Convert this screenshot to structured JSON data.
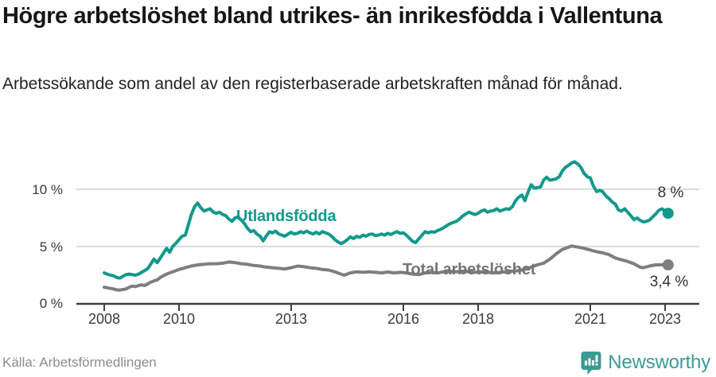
{
  "header": {
    "title": "Högre arbetslöshet bland utrikes- än inrikesfödda i Vallentuna",
    "subtitle": "Arbetssökande som andel av den registerbaserade arbetskraften månad för månad."
  },
  "footer": {
    "source": "Källa: Arbetsförmedlingen",
    "brand": "Newsworthy",
    "brand_icon": "bar-chart-speech-bubble-icon",
    "brand_color": "#3a9b95"
  },
  "chart_data": {
    "type": "line",
    "title": "",
    "xlabel": "",
    "ylabel": "",
    "ylim": [
      0,
      13
    ],
    "xlim": [
      2008,
      2023.1
    ],
    "grid": "horizontal",
    "y_gridlines": [
      5,
      10
    ],
    "y_ticks": [
      "10 %",
      "5 %",
      "0 %"
    ],
    "x_ticks": [
      2008,
      2010,
      2013,
      2016,
      2018,
      2021,
      2023
    ],
    "colors": {
      "axis": "#3f3f3f",
      "gridline": "#dcdcdc",
      "background": "#ffffff"
    },
    "series": [
      {
        "name": "Utlandsfödda",
        "color": "#12998b",
        "end_label": "8 %",
        "end_value": 8,
        "points": [
          [
            2008.0,
            2.7
          ],
          [
            2008.08,
            2.6
          ],
          [
            2008.17,
            2.5
          ],
          [
            2008.25,
            2.45
          ],
          [
            2008.33,
            2.3
          ],
          [
            2008.42,
            2.25
          ],
          [
            2008.5,
            2.4
          ],
          [
            2008.58,
            2.55
          ],
          [
            2008.67,
            2.6
          ],
          [
            2008.75,
            2.55
          ],
          [
            2008.83,
            2.5
          ],
          [
            2008.92,
            2.6
          ],
          [
            2009.0,
            2.75
          ],
          [
            2009.08,
            2.9
          ],
          [
            2009.17,
            3.1
          ],
          [
            2009.25,
            3.5
          ],
          [
            2009.33,
            3.9
          ],
          [
            2009.42,
            3.6
          ],
          [
            2009.5,
            4.0
          ],
          [
            2009.58,
            4.4
          ],
          [
            2009.67,
            4.85
          ],
          [
            2009.75,
            4.5
          ],
          [
            2009.83,
            5.0
          ],
          [
            2009.92,
            5.3
          ],
          [
            2010.0,
            5.6
          ],
          [
            2010.08,
            5.9
          ],
          [
            2010.17,
            6.0
          ],
          [
            2010.25,
            6.9
          ],
          [
            2010.33,
            7.8
          ],
          [
            2010.42,
            8.5
          ],
          [
            2010.5,
            8.8
          ],
          [
            2010.58,
            8.4
          ],
          [
            2010.67,
            8.1
          ],
          [
            2010.75,
            8.2
          ],
          [
            2010.83,
            8.3
          ],
          [
            2010.92,
            8.0
          ],
          [
            2011.0,
            7.9
          ],
          [
            2011.08,
            8.0
          ],
          [
            2011.17,
            7.8
          ],
          [
            2011.25,
            7.7
          ],
          [
            2011.33,
            7.4
          ],
          [
            2011.42,
            7.2
          ],
          [
            2011.5,
            7.5
          ],
          [
            2011.58,
            7.6
          ],
          [
            2011.67,
            7.3
          ],
          [
            2011.75,
            7.0
          ],
          [
            2011.83,
            6.6
          ],
          [
            2011.92,
            6.3
          ],
          [
            2012.0,
            6.4
          ],
          [
            2012.08,
            6.1
          ],
          [
            2012.17,
            5.9
          ],
          [
            2012.25,
            5.5
          ],
          [
            2012.33,
            5.9
          ],
          [
            2012.42,
            6.3
          ],
          [
            2012.5,
            6.2
          ],
          [
            2012.58,
            6.35
          ],
          [
            2012.67,
            6.1
          ],
          [
            2012.75,
            6.0
          ],
          [
            2012.83,
            5.9
          ],
          [
            2012.92,
            6.1
          ],
          [
            2013.0,
            6.25
          ],
          [
            2013.08,
            6.1
          ],
          [
            2013.17,
            6.15
          ],
          [
            2013.25,
            6.3
          ],
          [
            2013.33,
            6.2
          ],
          [
            2013.42,
            6.35
          ],
          [
            2013.5,
            6.2
          ],
          [
            2013.58,
            6.1
          ],
          [
            2013.67,
            6.25
          ],
          [
            2013.75,
            6.1
          ],
          [
            2013.83,
            6.3
          ],
          [
            2013.92,
            6.2
          ],
          [
            2014.0,
            6.1
          ],
          [
            2014.08,
            5.9
          ],
          [
            2014.17,
            5.6
          ],
          [
            2014.25,
            5.4
          ],
          [
            2014.33,
            5.25
          ],
          [
            2014.42,
            5.4
          ],
          [
            2014.5,
            5.6
          ],
          [
            2014.58,
            5.85
          ],
          [
            2014.67,
            5.7
          ],
          [
            2014.75,
            5.9
          ],
          [
            2014.83,
            5.8
          ],
          [
            2014.92,
            6.0
          ],
          [
            2015.0,
            5.9
          ],
          [
            2015.08,
            6.05
          ],
          [
            2015.17,
            6.1
          ],
          [
            2015.25,
            5.95
          ],
          [
            2015.33,
            6.0
          ],
          [
            2015.42,
            6.1
          ],
          [
            2015.5,
            6.0
          ],
          [
            2015.58,
            6.15
          ],
          [
            2015.67,
            6.05
          ],
          [
            2015.75,
            6.2
          ],
          [
            2015.83,
            6.3
          ],
          [
            2015.92,
            6.15
          ],
          [
            2016.0,
            6.2
          ],
          [
            2016.08,
            6.0
          ],
          [
            2016.17,
            5.7
          ],
          [
            2016.25,
            5.45
          ],
          [
            2016.33,
            5.35
          ],
          [
            2016.42,
            5.7
          ],
          [
            2016.5,
            6.0
          ],
          [
            2016.58,
            6.3
          ],
          [
            2016.67,
            6.2
          ],
          [
            2016.75,
            6.3
          ],
          [
            2016.83,
            6.25
          ],
          [
            2016.92,
            6.4
          ],
          [
            2017.0,
            6.5
          ],
          [
            2017.08,
            6.65
          ],
          [
            2017.17,
            6.85
          ],
          [
            2017.25,
            7.0
          ],
          [
            2017.33,
            7.1
          ],
          [
            2017.42,
            7.2
          ],
          [
            2017.5,
            7.4
          ],
          [
            2017.58,
            7.65
          ],
          [
            2017.67,
            7.85
          ],
          [
            2017.75,
            8.0
          ],
          [
            2017.83,
            7.9
          ],
          [
            2017.92,
            7.8
          ],
          [
            2018.0,
            7.9
          ],
          [
            2018.08,
            8.1
          ],
          [
            2018.17,
            8.2
          ],
          [
            2018.25,
            8.0
          ],
          [
            2018.33,
            8.1
          ],
          [
            2018.42,
            8.15
          ],
          [
            2018.5,
            8.3
          ],
          [
            2018.58,
            8.1
          ],
          [
            2018.67,
            8.2
          ],
          [
            2018.75,
            8.3
          ],
          [
            2018.83,
            8.25
          ],
          [
            2018.92,
            8.5
          ],
          [
            2019.0,
            9.0
          ],
          [
            2019.08,
            9.3
          ],
          [
            2019.17,
            9.5
          ],
          [
            2019.25,
            9.0
          ],
          [
            2019.33,
            9.7
          ],
          [
            2019.42,
            10.4
          ],
          [
            2019.5,
            10.1
          ],
          [
            2019.58,
            10.15
          ],
          [
            2019.67,
            10.2
          ],
          [
            2019.75,
            10.8
          ],
          [
            2019.83,
            11.05
          ],
          [
            2019.92,
            10.8
          ],
          [
            2020.0,
            10.85
          ],
          [
            2020.08,
            10.9
          ],
          [
            2020.17,
            11.1
          ],
          [
            2020.25,
            11.6
          ],
          [
            2020.33,
            11.9
          ],
          [
            2020.42,
            12.1
          ],
          [
            2020.5,
            12.3
          ],
          [
            2020.58,
            12.4
          ],
          [
            2020.67,
            12.2
          ],
          [
            2020.75,
            11.9
          ],
          [
            2020.83,
            11.4
          ],
          [
            2020.92,
            11.1
          ],
          [
            2021.0,
            11.0
          ],
          [
            2021.08,
            10.3
          ],
          [
            2021.17,
            9.8
          ],
          [
            2021.25,
            9.9
          ],
          [
            2021.33,
            9.8
          ],
          [
            2021.42,
            9.4
          ],
          [
            2021.5,
            9.2
          ],
          [
            2021.58,
            8.9
          ],
          [
            2021.67,
            8.7
          ],
          [
            2021.75,
            8.2
          ],
          [
            2021.83,
            8.1
          ],
          [
            2021.92,
            8.3
          ],
          [
            2022.0,
            8.0
          ],
          [
            2022.08,
            7.7
          ],
          [
            2022.17,
            7.35
          ],
          [
            2022.25,
            7.5
          ],
          [
            2022.33,
            7.3
          ],
          [
            2022.42,
            7.15
          ],
          [
            2022.5,
            7.2
          ],
          [
            2022.58,
            7.3
          ],
          [
            2022.67,
            7.6
          ],
          [
            2022.75,
            7.85
          ],
          [
            2022.83,
            8.15
          ],
          [
            2022.92,
            8.3
          ],
          [
            2023.0,
            8.1
          ],
          [
            2023.08,
            7.9
          ]
        ]
      },
      {
        "name": "Total arbetslöshet",
        "color": "#7e7e7e",
        "end_label": "3,4 %",
        "end_value": 3.4,
        "points": [
          [
            2008.0,
            1.45
          ],
          [
            2008.08,
            1.4
          ],
          [
            2008.17,
            1.35
          ],
          [
            2008.25,
            1.3
          ],
          [
            2008.33,
            1.22
          ],
          [
            2008.42,
            1.2
          ],
          [
            2008.5,
            1.25
          ],
          [
            2008.58,
            1.3
          ],
          [
            2008.67,
            1.45
          ],
          [
            2008.75,
            1.55
          ],
          [
            2008.83,
            1.5
          ],
          [
            2008.92,
            1.6
          ],
          [
            2009.0,
            1.65
          ],
          [
            2009.08,
            1.6
          ],
          [
            2009.17,
            1.75
          ],
          [
            2009.25,
            1.9
          ],
          [
            2009.33,
            2.0
          ],
          [
            2009.42,
            2.1
          ],
          [
            2009.5,
            2.3
          ],
          [
            2009.58,
            2.45
          ],
          [
            2009.67,
            2.6
          ],
          [
            2009.75,
            2.7
          ],
          [
            2009.83,
            2.8
          ],
          [
            2009.92,
            2.9
          ],
          [
            2010.0,
            3.0
          ],
          [
            2010.17,
            3.15
          ],
          [
            2010.33,
            3.3
          ],
          [
            2010.5,
            3.4
          ],
          [
            2010.67,
            3.45
          ],
          [
            2010.83,
            3.5
          ],
          [
            2011.0,
            3.5
          ],
          [
            2011.17,
            3.55
          ],
          [
            2011.33,
            3.65
          ],
          [
            2011.5,
            3.6
          ],
          [
            2011.67,
            3.5
          ],
          [
            2011.83,
            3.45
          ],
          [
            2012.0,
            3.35
          ],
          [
            2012.17,
            3.3
          ],
          [
            2012.33,
            3.2
          ],
          [
            2012.5,
            3.15
          ],
          [
            2012.67,
            3.1
          ],
          [
            2012.83,
            3.05
          ],
          [
            2013.0,
            3.15
          ],
          [
            2013.17,
            3.3
          ],
          [
            2013.33,
            3.25
          ],
          [
            2013.5,
            3.15
          ],
          [
            2013.67,
            3.1
          ],
          [
            2013.83,
            3.0
          ],
          [
            2014.0,
            2.95
          ],
          [
            2014.17,
            2.8
          ],
          [
            2014.33,
            2.6
          ],
          [
            2014.42,
            2.5
          ],
          [
            2014.58,
            2.7
          ],
          [
            2014.75,
            2.8
          ],
          [
            2014.92,
            2.75
          ],
          [
            2015.08,
            2.8
          ],
          [
            2015.25,
            2.75
          ],
          [
            2015.42,
            2.7
          ],
          [
            2015.58,
            2.78
          ],
          [
            2015.75,
            2.7
          ],
          [
            2015.92,
            2.75
          ],
          [
            2016.08,
            2.7
          ],
          [
            2016.25,
            2.6
          ],
          [
            2016.42,
            2.55
          ],
          [
            2016.58,
            2.7
          ],
          [
            2016.75,
            2.75
          ],
          [
            2016.92,
            2.7
          ],
          [
            2017.08,
            2.8
          ],
          [
            2017.25,
            2.85
          ],
          [
            2017.42,
            2.8
          ],
          [
            2017.58,
            2.85
          ],
          [
            2017.75,
            2.8
          ],
          [
            2017.92,
            2.75
          ],
          [
            2018.08,
            2.8
          ],
          [
            2018.25,
            2.75
          ],
          [
            2018.42,
            2.7
          ],
          [
            2018.58,
            2.75
          ],
          [
            2018.75,
            2.8
          ],
          [
            2018.92,
            2.85
          ],
          [
            2019.08,
            2.9
          ],
          [
            2019.25,
            3.0
          ],
          [
            2019.42,
            3.2
          ],
          [
            2019.58,
            3.4
          ],
          [
            2019.75,
            3.55
          ],
          [
            2019.92,
            3.9
          ],
          [
            2020.08,
            4.35
          ],
          [
            2020.25,
            4.75
          ],
          [
            2020.42,
            4.95
          ],
          [
            2020.5,
            5.05
          ],
          [
            2020.67,
            4.95
          ],
          [
            2020.83,
            4.85
          ],
          [
            2021.0,
            4.7
          ],
          [
            2021.17,
            4.55
          ],
          [
            2021.33,
            4.45
          ],
          [
            2021.5,
            4.3
          ],
          [
            2021.67,
            4.0
          ],
          [
            2021.83,
            3.85
          ],
          [
            2022.0,
            3.7
          ],
          [
            2022.17,
            3.5
          ],
          [
            2022.33,
            3.2
          ],
          [
            2022.42,
            3.15
          ],
          [
            2022.58,
            3.3
          ],
          [
            2022.75,
            3.4
          ],
          [
            2022.92,
            3.4
          ],
          [
            2023.08,
            3.4
          ]
        ]
      }
    ]
  }
}
